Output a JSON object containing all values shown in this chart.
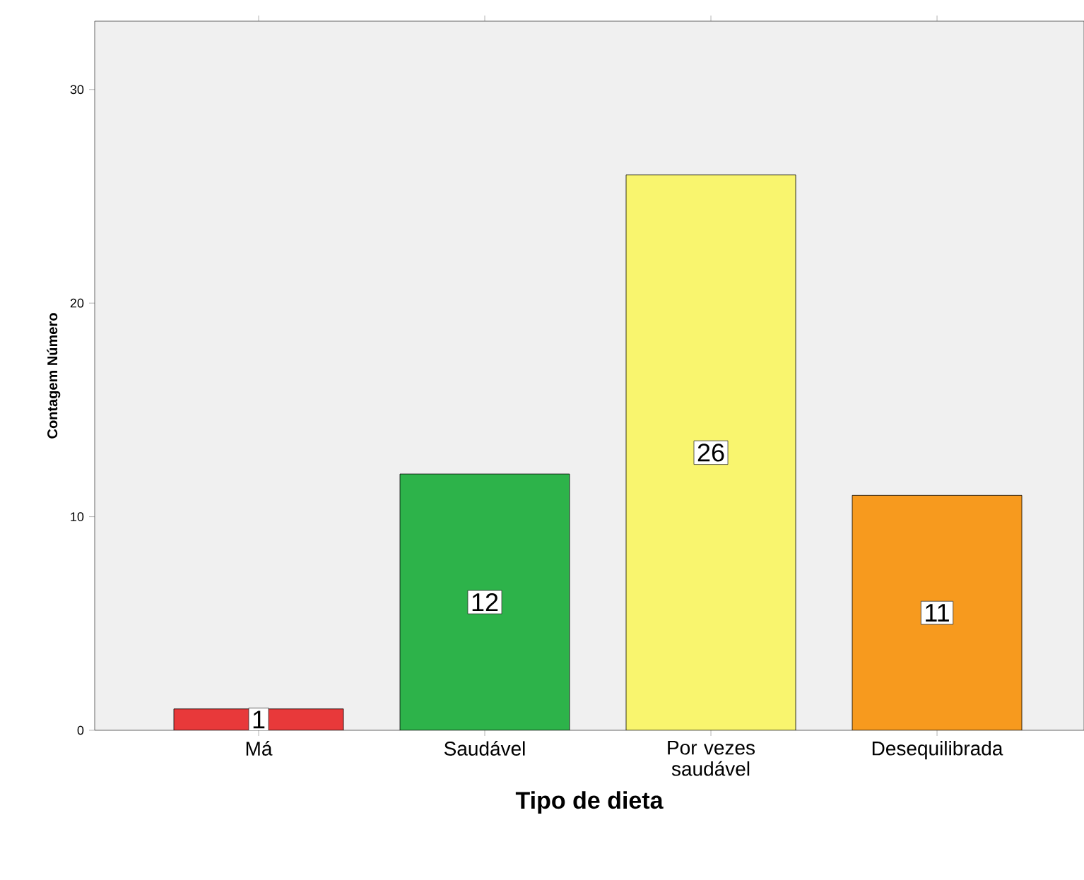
{
  "chart_data": {
    "type": "bar",
    "xlabel": "Tipo de dieta",
    "ylabel": "Contagem Número",
    "categories": [
      "Má",
      "Saudável",
      "Por vezes saudável",
      "Desequilibrada"
    ],
    "values": [
      1,
      12,
      26,
      11
    ],
    "colors": [
      "#e8393a",
      "#2db34a",
      "#f9f56e",
      "#f79a1e"
    ],
    "ylim": [
      0,
      33.2
    ],
    "yticks": [
      0,
      10,
      20,
      30
    ],
    "data_labels": true
  }
}
